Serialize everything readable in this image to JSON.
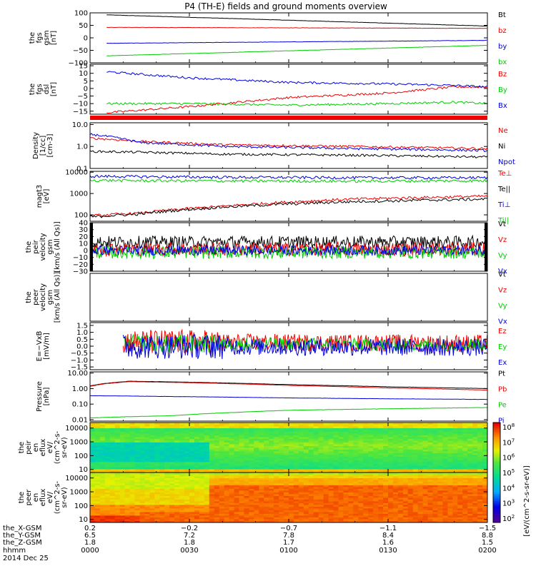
{
  "title": "P4 (TH-E) fields and ground moments overview",
  "colors": {
    "black": "#000000",
    "red": "#ee0000",
    "green": "#00cc00",
    "blue": "#0000dd"
  },
  "chart_data": {
    "type": "line",
    "x_ticks": [
      "0000",
      "0030",
      "0100",
      "0130",
      "0200"
    ],
    "x_range": [
      0,
      120
    ],
    "panels": [
      {
        "id": "fgs_gsm",
        "ylabel_lines": [
          "the",
          "fgs",
          "gsm",
          "[nT]"
        ],
        "yticks": [
          "100",
          "50",
          "0",
          "−50",
          "−100"
        ],
        "ytick_values": [
          100,
          50,
          0,
          -50,
          -100
        ],
        "ylim": [
          -100,
          100
        ],
        "scale": "linear",
        "series": [
          {
            "name": "Bt",
            "color": "black",
            "x": [
              5,
              120
            ],
            "y": [
              92,
              47
            ]
          },
          {
            "name": "bz",
            "color": "red",
            "x": [
              5,
              120
            ],
            "y": [
              42,
              38
            ]
          },
          {
            "name": "by",
            "color": "blue",
            "x": [
              5,
              120
            ],
            "y": [
              -22,
              -10
            ]
          },
          {
            "name": "bx",
            "color": "green",
            "x": [
              5,
              120
            ],
            "y": [
              -72,
              -30
            ]
          }
        ]
      },
      {
        "id": "fgs_dsl",
        "ylabel_lines": [
          "the",
          "fgs",
          "dsl",
          "[nT]"
        ],
        "yticks": [
          "15",
          "10",
          "5",
          "0",
          "−5",
          "−10",
          "−15"
        ],
        "ytick_values": [
          15,
          10,
          5,
          0,
          -5,
          -10,
          -15
        ],
        "ylim": [
          -17,
          16
        ],
        "scale": "linear",
        "series": [
          {
            "name": "Bz",
            "color": "red",
            "x": [
              5,
              30,
              60,
              90,
              110,
              120
            ],
            "y": [
              -16,
              -12,
              -6,
              -3,
              1,
              1
            ]
          },
          {
            "name": "By",
            "color": "green",
            "x": [
              5,
              30,
              60,
              90,
              110,
              120
            ],
            "y": [
              -10,
              -10,
              -11,
              -10,
              -9,
              -10
            ]
          },
          {
            "name": "Bx",
            "color": "blue",
            "x": [
              5,
              30,
              60,
              90,
              110,
              120
            ],
            "y": [
              11,
              7,
              4,
              3,
              2,
              1
            ]
          }
        ]
      },
      {
        "id": "density",
        "ylabel_lines": [
          "Density",
          "[1/cc]",
          "[cm-3]"
        ],
        "yticks": [
          "10.0",
          "1.0",
          "0.1"
        ],
        "ytick_values": [
          10,
          1,
          0.1
        ],
        "ylim": [
          0.1,
          12
        ],
        "scale": "log",
        "series": [
          {
            "name": "Ne",
            "color": "red",
            "x": [
              0,
              15,
              40,
              80,
              120
            ],
            "y": [
              2.4,
              1.7,
              1.2,
              1.0,
              0.8
            ]
          },
          {
            "name": "Ni",
            "color": "black",
            "x": [
              0,
              15,
              40,
              80,
              120
            ],
            "y": [
              0.6,
              0.55,
              0.45,
              0.4,
              0.33
            ]
          },
          {
            "name": "Npot",
            "color": "blue",
            "x": [
              0,
              15,
              40,
              80,
              120
            ],
            "y": [
              3.6,
              1.5,
              1.0,
              0.8,
              0.65
            ]
          }
        ]
      },
      {
        "id": "temperature",
        "ylabel_lines": [
          "magt3",
          "[eV]"
        ],
        "yticks": [
          "10000",
          "1000",
          "100"
        ],
        "ytick_values": [
          10000,
          1000,
          100
        ],
        "ylim": [
          50,
          11000
        ],
        "scale": "log",
        "series": [
          {
            "name": "Te⊥",
            "color": "red",
            "x": [
              0,
              15,
              40,
              80,
              120
            ],
            "y": [
              90,
              120,
              250,
              550,
              750
            ]
          },
          {
            "name": "Te||",
            "color": "black",
            "x": [
              0,
              15,
              40,
              80,
              120
            ],
            "y": [
              80,
              110,
              230,
              420,
              550
            ]
          },
          {
            "name": "Ti⊥",
            "color": "blue",
            "x": [
              0,
              15,
              40,
              80,
              120
            ],
            "y": [
              6500,
              6200,
              5800,
              5500,
              5500
            ]
          },
          {
            "name": "Ti||",
            "color": "green",
            "x": [
              0,
              15,
              40,
              80,
              120
            ],
            "y": [
              4200,
              4000,
              3900,
              3800,
              4000
            ]
          }
        ]
      },
      {
        "id": "peir_velocity",
        "ylabel_lines": [
          "the",
          "peir",
          "velocity",
          "gsm",
          "[km/s (All Qs)]"
        ],
        "yticks": [
          "40",
          "30",
          "20",
          "10",
          "0",
          "−10",
          "−20",
          "−30"
        ],
        "ytick_values": [
          40,
          30,
          20,
          10,
          0,
          -10,
          -20,
          -30
        ],
        "ylim": [
          -30,
          40
        ],
        "scale": "linear",
        "series": [
          {
            "name": "Vt",
            "color": "black",
            "x": [
              0,
              120
            ],
            "y": [
              12,
              12
            ]
          },
          {
            "name": "Vz",
            "color": "red",
            "x": [
              0,
              120
            ],
            "y": [
              2,
              2
            ]
          },
          {
            "name": "Vy",
            "color": "green",
            "x": [
              0,
              120
            ],
            "y": [
              -3,
              -3
            ]
          },
          {
            "name": "Vx",
            "color": "blue",
            "x": [
              0,
              120
            ],
            "y": [
              0,
              0
            ]
          }
        ]
      },
      {
        "id": "peer_velocity",
        "ylabel_lines": [
          "the",
          "peer",
          "velocity",
          "gsm",
          "[km/s (All Qs)]"
        ],
        "yticks": [],
        "ytick_values": [],
        "ylim": [
          -30,
          40
        ],
        "scale": "linear",
        "series": [
          {
            "name": "Vt",
            "color": "black",
            "x": [],
            "y": []
          },
          {
            "name": "Vz",
            "color": "red",
            "x": [],
            "y": []
          },
          {
            "name": "Vy",
            "color": "green",
            "x": [],
            "y": []
          },
          {
            "name": "Vx",
            "color": "blue",
            "x": [],
            "y": []
          }
        ]
      },
      {
        "id": "efield",
        "ylabel_lines": [
          "E=−VxB",
          "[mV/m]"
        ],
        "yticks": [
          "1.5",
          "1.0",
          "0.5",
          "0.0",
          "−0.5",
          "−1.0",
          "−1.5"
        ],
        "ytick_values": [
          1.5,
          1.0,
          0.5,
          0.0,
          -0.5,
          -1.0,
          -1.5
        ],
        "ylim": [
          -1.7,
          1.7
        ],
        "scale": "linear",
        "series": [
          {
            "name": "Ez",
            "color": "red",
            "x": [
              10,
              120
            ],
            "y": [
              0.3,
              0.2
            ]
          },
          {
            "name": "Ey",
            "color": "green",
            "x": [
              10,
              120
            ],
            "y": [
              0.2,
              0.1
            ]
          },
          {
            "name": "Ex",
            "color": "blue",
            "x": [
              10,
              120
            ],
            "y": [
              0.0,
              -0.1
            ]
          }
        ]
      },
      {
        "id": "pressure",
        "ylabel_lines": [
          "Pressure",
          "[nPa]"
        ],
        "yticks": [
          "10.00",
          "1.00",
          "0.10",
          "0.01"
        ],
        "ytick_values": [
          10,
          1,
          0.1,
          0.01
        ],
        "ylim": [
          0.008,
          12
        ],
        "scale": "log",
        "series": [
          {
            "name": "Pt",
            "color": "black",
            "x": [
              0,
              5,
              12,
              30,
              60,
              90,
              120
            ],
            "y": [
              1.5,
              2.2,
              3.0,
              2.6,
              1.8,
              1.3,
              1.0
            ]
          },
          {
            "name": "Pb",
            "color": "red",
            "x": [
              0,
              5,
              12,
              30,
              60,
              90,
              120
            ],
            "y": [
              1.4,
              2.1,
              2.8,
              2.4,
              1.6,
              1.1,
              0.8
            ]
          },
          {
            "name": "Pe",
            "color": "green",
            "x": [
              0,
              25,
              45,
              60,
              90,
              120
            ],
            "y": [
              0.013,
              0.018,
              0.03,
              0.04,
              0.05,
              0.06
            ]
          },
          {
            "name": "Pi",
            "color": "blue",
            "x": [
              0,
              30,
              60,
              90,
              120
            ],
            "y": [
              0.35,
              0.3,
              0.25,
              0.22,
              0.2
            ]
          }
        ]
      }
    ],
    "spectrograms": [
      {
        "id": "peir_eflux",
        "ylabel_lines": [
          "the",
          "peir",
          "en",
          "eflux",
          "eV/",
          "(cm^2-s-",
          "sr-eV)"
        ],
        "yticks": [
          "10000",
          "1000",
          "100",
          "10"
        ],
        "ytick_values": [
          10000,
          1000,
          100,
          10
        ],
        "ylim": [
          6,
          25000
        ],
        "scale": "log"
      },
      {
        "id": "peer_eflux",
        "ylabel_lines": [
          "the",
          "peer",
          "en",
          "eflux",
          "eV/",
          "(cm^2-s-",
          "sr-eV)"
        ],
        "yticks": [
          "10000",
          "1000",
          "100",
          "10"
        ],
        "ytick_values": [
          10000,
          1000,
          100,
          10
        ],
        "ylim": [
          6,
          25000
        ],
        "scale": "log"
      }
    ],
    "colorbar": {
      "label": "[eV/(cm^2-s-sr-eV)]",
      "ticks": [
        "10^8",
        "10^7",
        "10^6",
        "10^5",
        "10^4",
        "10^3",
        "10^2"
      ]
    }
  },
  "footer": {
    "rows": [
      {
        "label": "the_X-GSM",
        "values": [
          "0.2",
          "−0.2",
          "−0.7",
          "−1.1",
          "−1.5"
        ]
      },
      {
        "label": "the_Y-GSM",
        "values": [
          "6.5",
          "7.2",
          "7.8",
          "8.4",
          "8.8"
        ]
      },
      {
        "label": "the_Z-GSM",
        "values": [
          "1.8",
          "1.8",
          "1.7",
          "1.6",
          "1.5"
        ]
      },
      {
        "label": "hhmm",
        "values": [
          "0000",
          "0030",
          "0100",
          "0130",
          "0200"
        ]
      }
    ],
    "date": "2014 Dec 25"
  }
}
